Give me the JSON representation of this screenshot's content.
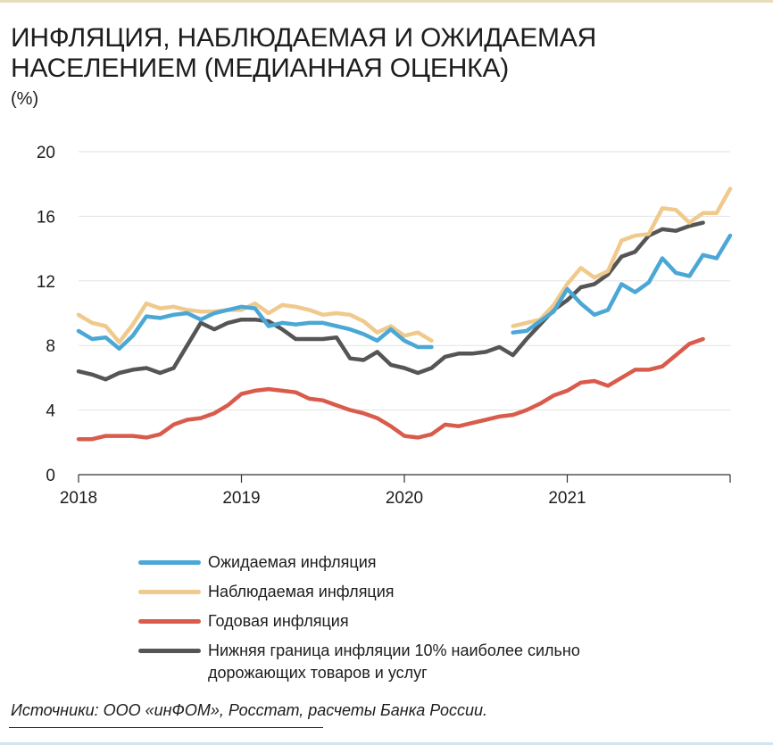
{
  "header": {
    "title": "ИНФЛЯЦИЯ, НАБЛЮДАЕМАЯ И ОЖИДАЕМАЯ НАСЕЛЕНИЕМ (МЕДИАННАЯ ОЦЕНКА)",
    "unit": "(%)"
  },
  "footer": {
    "source": "Источники: ООО «инФОМ», Росстат, расчеты Банка России."
  },
  "chart_data": {
    "type": "line",
    "title": "ИНФЛЯЦИЯ, НАБЛЮДАЕМАЯ И ОЖИДАЕМАЯ НАСЕЛЕНИЕМ (МЕДИАННАЯ ОЦЕНКА)",
    "ylabel": "(%)",
    "ylim": [
      0,
      20
    ],
    "yticks": [
      "0",
      "4",
      "8",
      "12",
      "16",
      "20"
    ],
    "xticks": [
      "2018",
      "2019",
      "2020",
      "2021"
    ],
    "x_axis": "monthly, Jan 2018 – Dec 2021",
    "grid": true,
    "legend_position": "bottom",
    "series": [
      {
        "name": "Ожидаемая инфляция",
        "color": "#4aa7d6",
        "values": [
          8.9,
          8.4,
          8.5,
          7.8,
          8.6,
          9.8,
          9.7,
          9.9,
          10.0,
          9.6,
          10.0,
          10.2,
          10.4,
          10.3,
          9.2,
          9.4,
          9.3,
          9.4,
          9.4,
          9.2,
          9.0,
          8.7,
          8.3,
          9.0,
          8.3,
          7.9,
          7.9,
          null,
          null,
          null,
          null,
          null,
          8.8,
          8.9,
          9.5,
          10.1,
          11.5,
          10.6,
          9.9,
          10.2,
          11.8,
          11.3,
          11.9,
          13.4,
          12.5,
          12.3,
          13.6,
          13.4,
          14.8
        ]
      },
      {
        "name": "Наблюдаемая  инфляция",
        "color": "#f0c98c",
        "values": [
          9.9,
          9.4,
          9.2,
          8.2,
          9.3,
          10.6,
          10.3,
          10.4,
          10.2,
          10.1,
          10.1,
          10.2,
          10.2,
          10.6,
          10.0,
          10.5,
          10.4,
          10.2,
          9.9,
          10.0,
          9.9,
          9.5,
          8.8,
          9.2,
          8.6,
          8.8,
          8.3,
          null,
          null,
          null,
          null,
          null,
          9.2,
          9.4,
          9.6,
          10.5,
          11.8,
          12.8,
          12.2,
          12.6,
          14.5,
          14.8,
          14.9,
          16.5,
          16.4,
          15.6,
          16.2,
          16.2,
          17.7
        ]
      },
      {
        "name": "Годовая инфляция",
        "color": "#d95b4b",
        "values": [
          2.2,
          2.2,
          2.4,
          2.4,
          2.4,
          2.3,
          2.5,
          3.1,
          3.4,
          3.5,
          3.8,
          4.3,
          5.0,
          5.2,
          5.3,
          5.2,
          5.1,
          4.7,
          4.6,
          4.3,
          4.0,
          3.8,
          3.5,
          3.0,
          2.4,
          2.3,
          2.5,
          3.1,
          3.0,
          3.2,
          3.4,
          3.6,
          3.7,
          4.0,
          4.4,
          4.9,
          5.2,
          5.7,
          5.8,
          5.5,
          6.0,
          6.5,
          6.5,
          6.7,
          7.4,
          8.1,
          8.4
        ]
      },
      {
        "name": "Нижняя граница инфляции 10% наиболее сильно дорожающих товаров и услуг",
        "color": "#555555",
        "values": [
          6.4,
          6.2,
          5.9,
          6.3,
          6.5,
          6.6,
          6.3,
          6.6,
          8.0,
          9.4,
          9.0,
          9.4,
          9.6,
          9.6,
          9.5,
          9.0,
          8.4,
          8.4,
          8.4,
          8.5,
          7.2,
          7.1,
          7.6,
          6.8,
          6.6,
          6.3,
          6.6,
          7.3,
          7.5,
          7.5,
          7.6,
          7.9,
          7.4,
          8.4,
          9.3,
          10.2,
          10.8,
          11.6,
          11.8,
          12.4,
          13.5,
          13.8,
          14.8,
          15.2,
          15.1,
          15.4,
          15.6
        ]
      }
    ]
  }
}
